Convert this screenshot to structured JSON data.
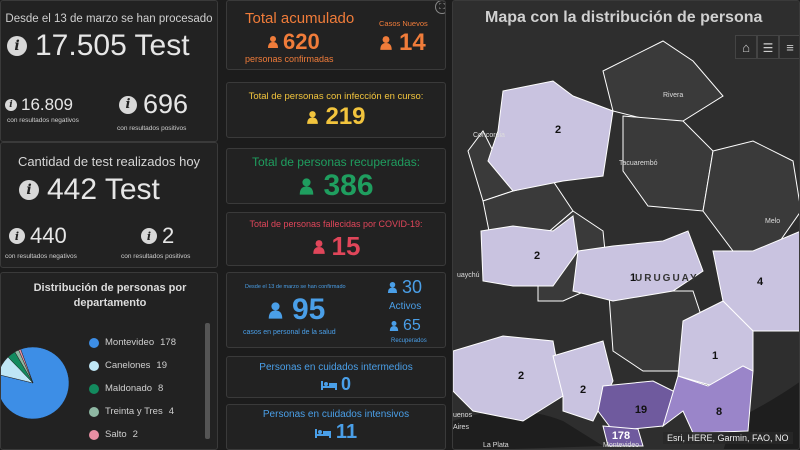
{
  "tests_total": {
    "header": "Desde el 13 de marzo se han procesado",
    "value": "17.505 Test",
    "negatives_value": "16.809",
    "negatives_label": "con resultados negativos",
    "positives_value": "696",
    "positives_label": "con resultados positivos"
  },
  "tests_today": {
    "header": "Cantidad de test realizados hoy",
    "value": "442 Test",
    "negatives_value": "440",
    "negatives_label": "con resultados negativos",
    "positives_value": "2",
    "positives_label": "con resultados positivos"
  },
  "distribution": {
    "title": "Distribución de personas por departamento",
    "items": [
      {
        "name": "Montevideo",
        "value": "178",
        "color": "#3d8ee6"
      },
      {
        "name": "Canelones",
        "value": "19",
        "color": "#bfe6f5"
      },
      {
        "name": "Maldonado",
        "value": "8",
        "color": "#138a5e"
      },
      {
        "name": "Treinta y Tres",
        "value": "4",
        "color": "#8fb8a3"
      },
      {
        "name": "Salto",
        "value": "2",
        "color": "#e88fa3"
      }
    ]
  },
  "accumulated": {
    "title": "Total acumulado",
    "value": "620",
    "label": "personas confirmadas",
    "new_title": "Casos Nuevos",
    "new_value": "14",
    "color": "#f07c3a",
    "new_color": "#f07c3a"
  },
  "active": {
    "title": "Total de personas con infección en curso:",
    "value": "219",
    "color": "#f2c43d"
  },
  "recovered": {
    "title": "Total de personas recuperadas:",
    "value": "386",
    "color": "#1f9e5f"
  },
  "deceased": {
    "title": "Total de personas fallecidas por COVID-19:",
    "value": "15",
    "color": "#e0465a"
  },
  "health_staff": {
    "header": "Desde el 13 de marzo se han confirmado",
    "value": "95",
    "label": "casos en personal de la salud",
    "active_value": "30",
    "active_label": "Activos",
    "recovered_value": "65",
    "recovered_label": "Recuperados",
    "color": "#4a9fe8"
  },
  "intermediate_care": {
    "title": "Personas en cuidados intermedios",
    "value": "0",
    "color": "#4a9fe8"
  },
  "intensive_care": {
    "title": "Personas en cuidados intensivos",
    "value": "11",
    "color": "#4a9fe8"
  },
  "map": {
    "title": "Mapa con la distribución de persona",
    "attribution": "Esri, HERE, Garmin, FAO, NO",
    "country_label": "URUGUAY",
    "place_labels": [
      "Concordia",
      "Rivera",
      "Tacuarembó",
      "Melo",
      "uaychú",
      "uenos",
      "Aires",
      "La Plata",
      "Montevideo"
    ],
    "dept_counts": [
      "2",
      "2",
      "1",
      "4",
      "1",
      "2",
      "2",
      "19",
      "8",
      "178"
    ],
    "fill_light": "#c9c3e0",
    "fill_mid": "#9a85c9",
    "fill_dark": "#6f5a9e"
  }
}
